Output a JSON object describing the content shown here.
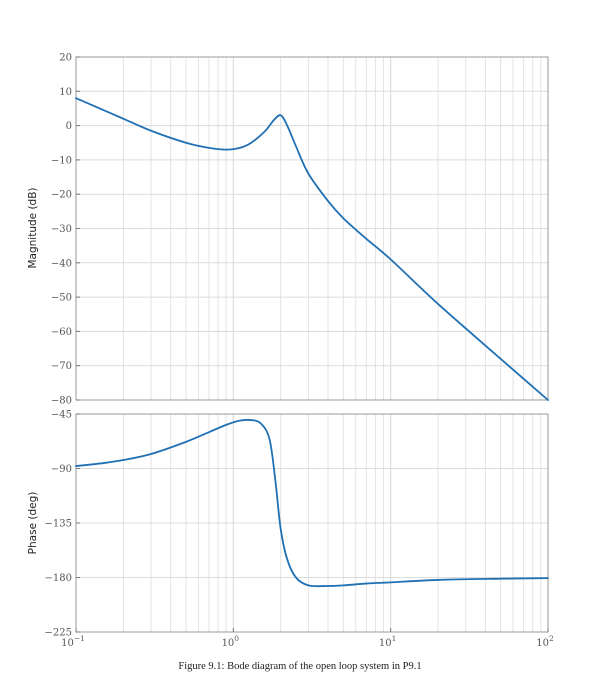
{
  "chart_data": [
    {
      "type": "line",
      "panel": "magnitude",
      "ylabel": "Magnitude (dB)",
      "xscale": "log",
      "xlim": [
        0.1,
        100
      ],
      "ylim": [
        -80,
        20
      ],
      "yticks": [
        {
          "value": 20,
          "label": "20"
        },
        {
          "value": 10,
          "label": "10"
        },
        {
          "value": 0,
          "label": "0"
        },
        {
          "value": -10,
          "label": "−10"
        },
        {
          "value": -20,
          "label": "−20"
        },
        {
          "value": -30,
          "label": "−30"
        },
        {
          "value": -40,
          "label": "−40"
        },
        {
          "value": -50,
          "label": "−50"
        },
        {
          "value": -60,
          "label": "−60"
        },
        {
          "value": -70,
          "label": "−70"
        },
        {
          "value": -80,
          "label": "−80"
        }
      ],
      "grid": true,
      "color": "#2070b4",
      "series": [
        {
          "x": [
            0.1,
            0.15,
            0.2,
            0.3,
            0.5,
            0.7,
            0.9,
            1.1,
            1.3,
            1.6,
            1.8,
            2.0,
            2.2,
            2.5,
            3.0,
            4.0,
            5.0,
            7.0,
            10,
            20,
            50,
            100
          ],
          "y": [
            8,
            4.5,
            2,
            -1.5,
            -5,
            -6.5,
            -7,
            -6.5,
            -5,
            -1.5,
            1.5,
            3,
            0,
            -6,
            -14,
            -22,
            -27,
            -33,
            -39,
            -52,
            -68,
            -80
          ]
        }
      ]
    },
    {
      "type": "line",
      "panel": "phase",
      "ylabel": "Phase (deg)",
      "xscale": "log",
      "xlim": [
        0.1,
        100
      ],
      "ylim": [
        -225,
        -45
      ],
      "xticks": [
        {
          "value": 0.1,
          "base": "10",
          "exp": "−1"
        },
        {
          "value": 1,
          "base": "10",
          "exp": "0"
        },
        {
          "value": 10,
          "base": "10",
          "exp": "1"
        },
        {
          "value": 100,
          "base": "10",
          "exp": "2"
        }
      ],
      "yticks": [
        {
          "value": -45,
          "label": "−45"
        },
        {
          "value": -90,
          "label": "−90"
        },
        {
          "value": -135,
          "label": "−135"
        },
        {
          "value": -180,
          "label": "−180"
        },
        {
          "value": -225,
          "label": "−225"
        }
      ],
      "grid": true,
      "color": "#2070b4",
      "series": [
        {
          "x": [
            0.1,
            0.15,
            0.2,
            0.3,
            0.5,
            0.7,
            0.9,
            1.1,
            1.3,
            1.5,
            1.7,
            1.85,
            2.0,
            2.2,
            2.5,
            3.0,
            4.0,
            5.0,
            7.0,
            10,
            20,
            50,
            100
          ],
          "y": [
            -88,
            -85.5,
            -83,
            -78,
            -68,
            -60,
            -54,
            -50.5,
            -50,
            -53,
            -66,
            -100,
            -140,
            -165,
            -180,
            -186.5,
            -187,
            -186.5,
            -185,
            -184,
            -182,
            -181,
            -180.5
          ]
        }
      ]
    }
  ],
  "caption": "Figure 9.1: Bode diagram of the open loop system in P9.1"
}
